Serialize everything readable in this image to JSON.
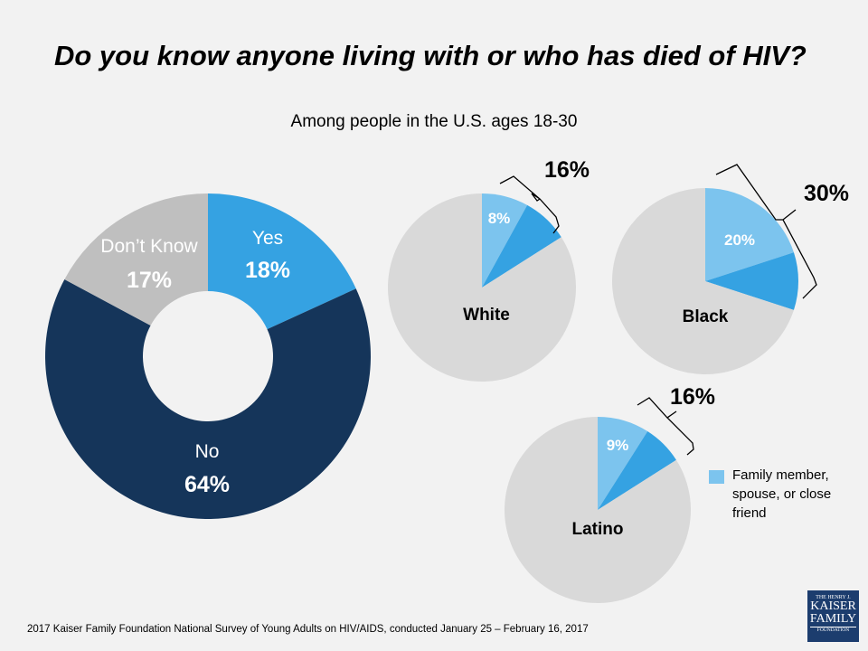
{
  "title": "Do you know anyone living with or who has died of HIV?",
  "subtitle": "Among people in the U.S. ages 18-30",
  "footer": "2017 Kaiser Family Foundation National Survey of Young Adults on HIV/AIDS, conducted January 25 – February 16, 2017",
  "legend": {
    "label": "Family member, spouse, or close friend",
    "color": "#7cc4ee"
  },
  "logo": {
    "line1": "THE HENRY J.",
    "line2": "KAISER",
    "line3": "FAMILY",
    "line4": "FOUNDATION"
  },
  "colors": {
    "navy": "#15355a",
    "blue": "#35a2e2",
    "light_blue": "#7cc4ee",
    "gray": "#bfbfbf",
    "pie_gray": "#d9d9d9"
  },
  "chart_data": [
    {
      "type": "pie",
      "style": "donut",
      "slices": [
        {
          "label": "Yes",
          "value": 18,
          "value_label": "18%",
          "color": "#35a2e2"
        },
        {
          "label": "No",
          "value": 64,
          "value_label": "64%",
          "color": "#15355a"
        },
        {
          "label": "Don’t Know",
          "value": 17,
          "value_label": "17%",
          "color": "#bfbfbf"
        }
      ]
    },
    {
      "type": "pie",
      "title": "White",
      "total_label": "16%",
      "slices": [
        {
          "label": "Family member, spouse, or close friend",
          "value": 8,
          "value_label": "8%",
          "color": "#7cc4ee"
        },
        {
          "label": "",
          "value": 8,
          "color": "#35a2e2"
        },
        {
          "label": "",
          "value": 84,
          "color": "#d9d9d9"
        }
      ]
    },
    {
      "type": "pie",
      "title": "Black",
      "total_label": "30%",
      "slices": [
        {
          "label": "Family member, spouse, or close friend",
          "value": 20,
          "value_label": "20%",
          "color": "#7cc4ee"
        },
        {
          "label": "",
          "value": 10,
          "color": "#35a2e2"
        },
        {
          "label": "",
          "value": 70,
          "color": "#d9d9d9"
        }
      ]
    },
    {
      "type": "pie",
      "title": "Latino",
      "total_label": "16%",
      "slices": [
        {
          "label": "Family member, spouse, or close friend",
          "value": 9,
          "value_label": "9%",
          "color": "#7cc4ee"
        },
        {
          "label": "",
          "value": 7,
          "color": "#35a2e2"
        },
        {
          "label": "",
          "value": 84,
          "color": "#d9d9d9"
        }
      ]
    }
  ]
}
